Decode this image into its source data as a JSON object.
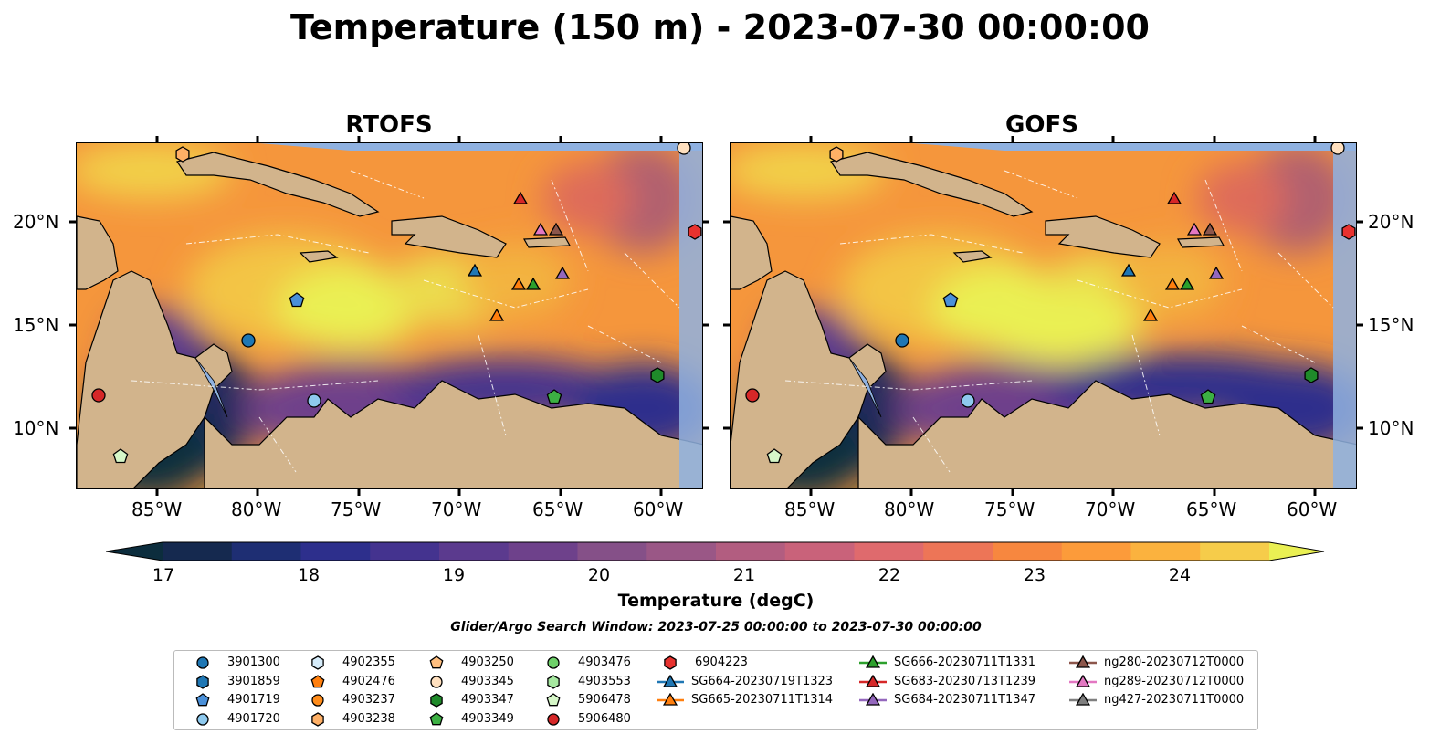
{
  "title": "Temperature (150 m) - 2023-07-30 00:00:00",
  "panels": [
    {
      "title": "RTOFS"
    },
    {
      "title": "GOFS"
    }
  ],
  "axes": {
    "lon_labels": [
      "85°W",
      "80°W",
      "75°W",
      "70°W",
      "65°W",
      "60°W"
    ],
    "lat_labels": [
      "20°N",
      "15°N",
      "10°N"
    ]
  },
  "colorbar": {
    "label": "Temperature (degC)",
    "ticks": [
      "17",
      "18",
      "19",
      "20",
      "21",
      "22",
      "23",
      "24"
    ],
    "colors": [
      "#0c2d3d",
      "#15294f",
      "#1e2e73",
      "#2d2f8c",
      "#44338f",
      "#5b3a8e",
      "#6e418b",
      "#855088",
      "#9a5786",
      "#b25d80",
      "#c9627a",
      "#df6a6d",
      "#ed7557",
      "#f7873f",
      "#fc9b3a",
      "#fbb23e",
      "#f6cc4a",
      "#eaf053"
    ]
  },
  "search_window": "Glider/Argo Search Window: 2023-07-25 00:00:00 to 2023-07-30 00:00:00",
  "legend": {
    "items": [
      {
        "label": "3901300",
        "marker": "circle",
        "color": "#1f77b4"
      },
      {
        "label": "3901859",
        "marker": "hexagon",
        "color": "#1f77b4"
      },
      {
        "label": "4901719",
        "marker": "pentagon",
        "color": "#4a90d9"
      },
      {
        "label": "4901720",
        "marker": "circle",
        "color": "#8ec9ee"
      },
      {
        "label": "4902355",
        "marker": "hexagon",
        "color": "#d6ecfa"
      },
      {
        "label": "4902476",
        "marker": "pentagon",
        "color": "#ff7f0e"
      },
      {
        "label": "4903237",
        "marker": "circle",
        "color": "#ff8c1a"
      },
      {
        "label": "4903238",
        "marker": "hexagon",
        "color": "#ffb066"
      },
      {
        "label": "4903250",
        "marker": "pentagon",
        "color": "#ffbf80"
      },
      {
        "label": "4903345",
        "marker": "circle",
        "color": "#ffe0bf"
      },
      {
        "label": "4903347",
        "marker": "hexagon",
        "color": "#1f8a2a"
      },
      {
        "label": "4903349",
        "marker": "pentagon",
        "color": "#3cb043"
      },
      {
        "label": "4903476",
        "marker": "circle",
        "color": "#6fd16a"
      },
      {
        "label": "4903553",
        "marker": "hexagon",
        "color": "#a6e8a0"
      },
      {
        "label": "5906478",
        "marker": "pentagon",
        "color": "#d6f7c8"
      },
      {
        "label": "5906480",
        "marker": "circle",
        "color": "#d62728"
      },
      {
        "label": "6904223",
        "marker": "hexagon",
        "color": "#e8322f"
      },
      {
        "label": "SG664-20230719T1323",
        "marker": "triangle-line",
        "color": "#1f77b4"
      },
      {
        "label": "SG665-20230711T1314",
        "marker": "triangle-line",
        "color": "#ff7f0e"
      },
      {
        "label": "SG666-20230711T1331",
        "marker": "triangle-line",
        "color": "#2ca02c"
      },
      {
        "label": "SG683-20230713T1239",
        "marker": "triangle-line",
        "color": "#d62728"
      },
      {
        "label": "SG684-20230711T1347",
        "marker": "triangle-line",
        "color": "#9467bd"
      },
      {
        "label": "ng280-20230712T0000",
        "marker": "triangle-line",
        "color": "#8c564b"
      },
      {
        "label": "ng289-20230712T0000",
        "marker": "triangle-line",
        "color": "#e377c2"
      },
      {
        "label": "ng427-20230711T0000",
        "marker": "triangle-line",
        "color": "#7f7f7f"
      }
    ]
  },
  "colors": {
    "land": "#d2b48c",
    "shelf": "#8fb1e0",
    "warm": "#eaf053",
    "cold": "#0c2d3d"
  }
}
